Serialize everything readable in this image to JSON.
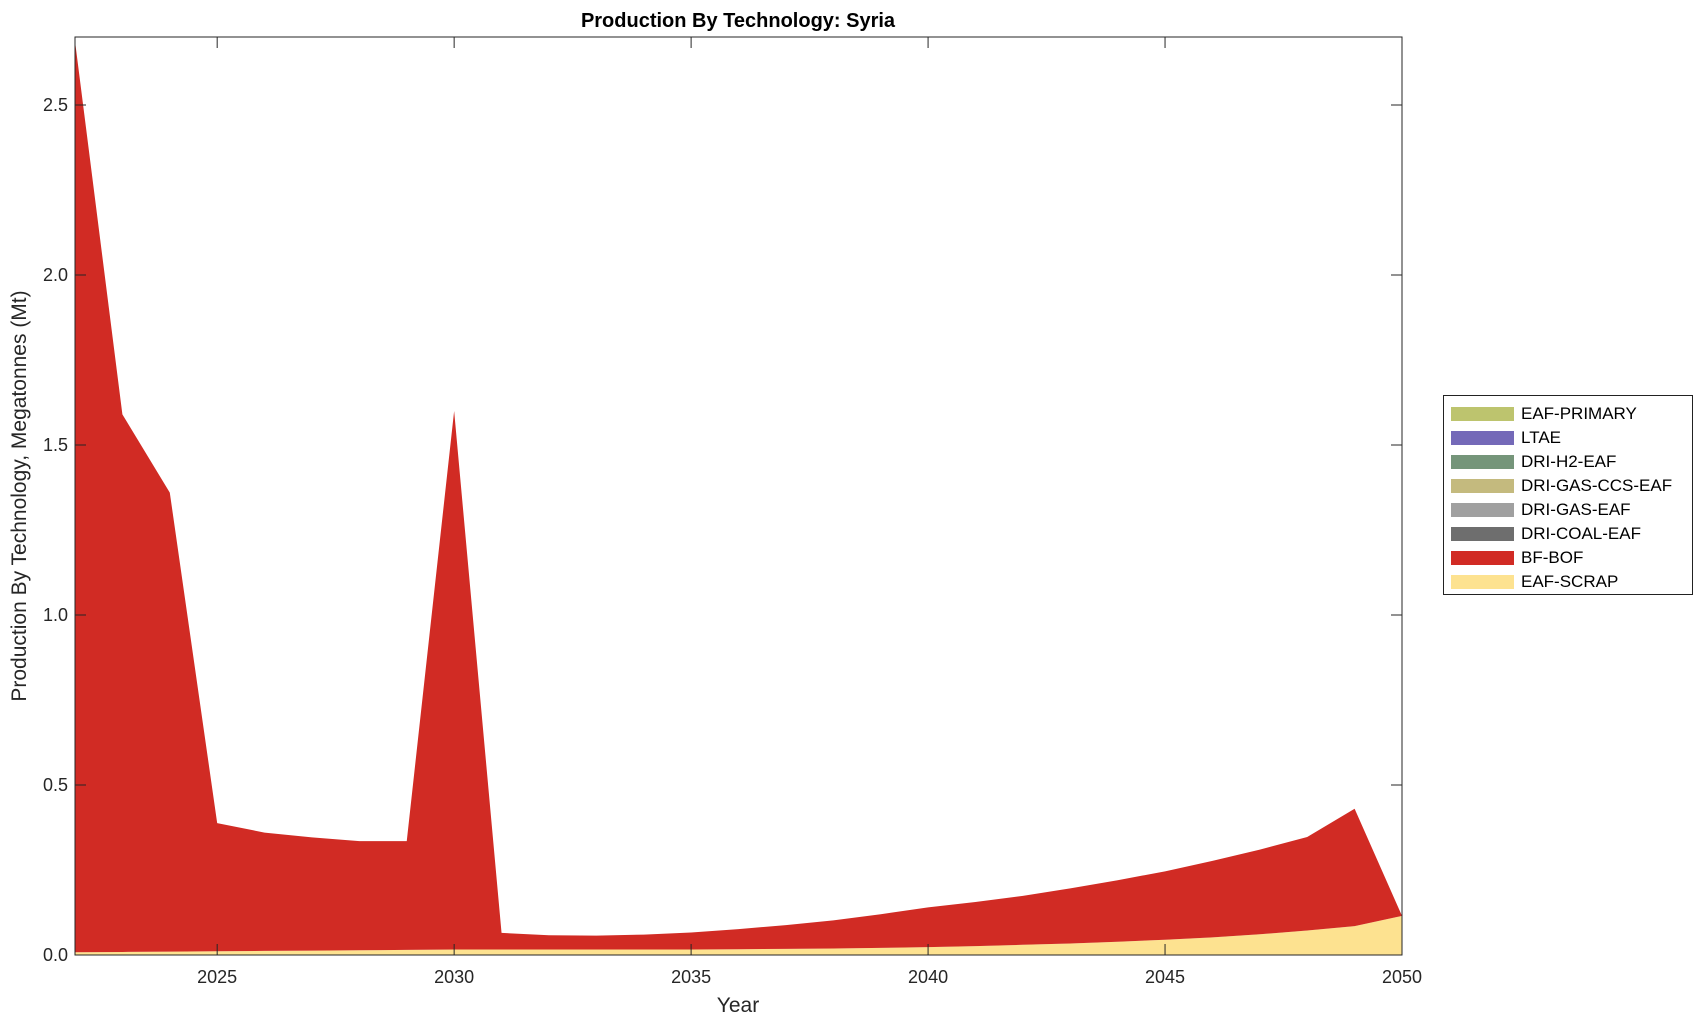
{
  "chart_data": {
    "type": "area",
    "stacked": true,
    "title": "Production By Technology: Syria",
    "xlabel": "Year",
    "ylabel": "Production By Technology, Megatonnes (Mt)",
    "xlim": [
      2022,
      2050
    ],
    "ylim": [
      0,
      2.7
    ],
    "xticks": [
      2025,
      2030,
      2035,
      2040,
      2045,
      2050
    ],
    "yticks": [
      0.0,
      0.5,
      1.0,
      1.5,
      2.0,
      2.5
    ],
    "ytick_labels": [
      "0.0",
      "0.5",
      "1.0",
      "1.5",
      "2.0",
      "2.5"
    ],
    "grid": false,
    "legend_position": "right",
    "x": [
      2022,
      2023,
      2024,
      2025,
      2026,
      2027,
      2028,
      2029,
      2030,
      2031,
      2032,
      2033,
      2034,
      2035,
      2036,
      2037,
      2038,
      2039,
      2040,
      2041,
      2042,
      2043,
      2044,
      2045,
      2046,
      2047,
      2048,
      2049,
      2050
    ],
    "series": [
      {
        "name": "EAF-SCRAP",
        "color": "#fde290",
        "values": [
          0.008,
          0.009,
          0.01,
          0.011,
          0.012,
          0.013,
          0.014,
          0.015,
          0.016,
          0.016,
          0.016,
          0.016,
          0.016,
          0.016,
          0.017,
          0.018,
          0.019,
          0.021,
          0.023,
          0.026,
          0.03,
          0.034,
          0.039,
          0.045,
          0.052,
          0.061,
          0.072,
          0.085,
          0.115
        ]
      },
      {
        "name": "BF-BOF",
        "color": "#d12b24",
        "values": [
          2.68,
          1.581,
          1.35,
          0.377,
          0.348,
          0.333,
          0.321,
          0.32,
          1.584,
          0.049,
          0.042,
          0.041,
          0.044,
          0.05,
          0.059,
          0.07,
          0.083,
          0.099,
          0.117,
          0.13,
          0.144,
          0.162,
          0.181,
          0.201,
          0.225,
          0.249,
          0.275,
          0.345,
          0.0
        ]
      },
      {
        "name": "DRI-COAL-EAF",
        "color": "#6e6e6e",
        "values": [
          0,
          0,
          0,
          0,
          0,
          0,
          0,
          0,
          0,
          0,
          0,
          0,
          0,
          0,
          0,
          0,
          0,
          0,
          0,
          0,
          0,
          0,
          0,
          0,
          0,
          0,
          0,
          0,
          0
        ]
      },
      {
        "name": "DRI-GAS-EAF",
        "color": "#a0a0a0",
        "values": [
          0,
          0,
          0,
          0,
          0,
          0,
          0,
          0,
          0,
          0,
          0,
          0,
          0,
          0,
          0,
          0,
          0,
          0,
          0,
          0,
          0,
          0,
          0,
          0,
          0,
          0,
          0,
          0,
          0
        ]
      },
      {
        "name": "DRI-GAS-CCS-EAF",
        "color": "#c4ba7e",
        "values": [
          0,
          0,
          0,
          0,
          0,
          0,
          0,
          0,
          0,
          0,
          0,
          0,
          0,
          0,
          0,
          0,
          0,
          0,
          0,
          0,
          0,
          0,
          0,
          0,
          0,
          0,
          0,
          0,
          0
        ]
      },
      {
        "name": "DRI-H2-EAF",
        "color": "#75957a",
        "values": [
          0,
          0,
          0,
          0,
          0,
          0,
          0,
          0,
          0,
          0,
          0,
          0,
          0,
          0,
          0,
          0,
          0,
          0,
          0,
          0,
          0,
          0,
          0,
          0,
          0,
          0,
          0,
          0,
          0
        ]
      },
      {
        "name": "LTAE",
        "color": "#7469b8",
        "values": [
          0,
          0,
          0,
          0,
          0,
          0,
          0,
          0,
          0,
          0,
          0,
          0,
          0,
          0,
          0,
          0,
          0,
          0,
          0,
          0,
          0,
          0,
          0,
          0,
          0,
          0,
          0,
          0,
          0
        ]
      },
      {
        "name": "EAF-PRIMARY",
        "color": "#bdc46e",
        "values": [
          0,
          0,
          0,
          0,
          0,
          0,
          0,
          0,
          0,
          0,
          0,
          0,
          0,
          0,
          0,
          0,
          0,
          0,
          0,
          0,
          0,
          0,
          0,
          0,
          0,
          0,
          0,
          0,
          0
        ]
      }
    ],
    "legend_order": [
      "EAF-PRIMARY",
      "LTAE",
      "DRI-H2-EAF",
      "DRI-GAS-CCS-EAF",
      "DRI-GAS-EAF",
      "DRI-COAL-EAF",
      "BF-BOF",
      "EAF-SCRAP"
    ]
  }
}
